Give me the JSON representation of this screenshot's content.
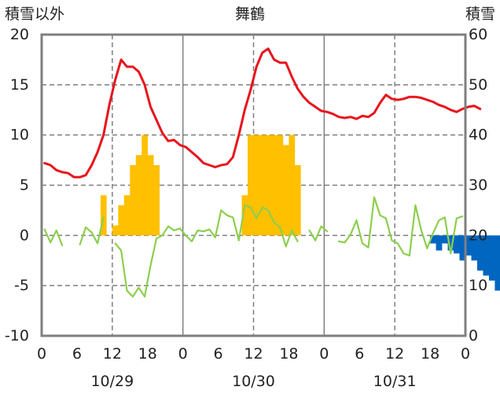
{
  "chart_data": {
    "type": "bar+line",
    "title": "舞鶴",
    "ylabel_left": "積雪以外",
    "ylabel_right": "積雪",
    "ylim_left": [
      -10,
      20
    ],
    "ylim_right": [
      0,
      60
    ],
    "yticks_left": [
      "20",
      "15",
      "10",
      "5",
      "0",
      "-5",
      "-10"
    ],
    "yticks_right": [
      "60",
      "50",
      "40",
      "30",
      "20",
      "10",
      "0"
    ],
    "xticks": [
      "0",
      "6",
      "12",
      "18",
      "0",
      "6",
      "12",
      "18",
      "0",
      "6",
      "12",
      "18",
      "0"
    ],
    "dates": [
      "10/29",
      "10/30",
      "10/31"
    ],
    "grid": true,
    "colors": {
      "temperature": "#e8141c",
      "change": "#8ccf4d",
      "positive_bar": "#ffc000",
      "negative_bar": "#0066c0",
      "axis": "#7f7f7f",
      "grid": "#7f7f7f"
    },
    "temperature": [
      7.2,
      7.0,
      6.5,
      6.3,
      6.2,
      5.8,
      5.8,
      6.0,
      7.0,
      8.3,
      10.0,
      13.0,
      15.5,
      17.5,
      16.8,
      16.8,
      16.3,
      15.0,
      12.8,
      11.5,
      10.2,
      9.4,
      9.5,
      9.0,
      8.8,
      8.3,
      7.8,
      7.2,
      7.0,
      6.8,
      7.0,
      7.1,
      7.8,
      10.0,
      12.5,
      14.5,
      16.8,
      18.2,
      18.6,
      17.5,
      17.2,
      17.2,
      15.8,
      14.6,
      13.8,
      13.2,
      12.8,
      12.4,
      12.3,
      12.1,
      11.8,
      11.7,
      11.8,
      11.6,
      11.9,
      11.8,
      12.2,
      13.2,
      14.0,
      13.6,
      13.5,
      13.6,
      13.8,
      13.8,
      13.7,
      13.5,
      13.3,
      13.0,
      12.8,
      12.5,
      12.3,
      12.6,
      12.8,
      12.9,
      12.6
    ],
    "change": [
      0.6,
      -0.7,
      0.5,
      -1.0,
      null,
      null,
      -0.9,
      0.8,
      0.3,
      -0.8,
      1.8,
      null,
      -0.8,
      -1.5,
      -5.5,
      -6.1,
      -5.2,
      -6.1,
      -3.0,
      -0.3,
      0.0,
      0.9,
      0.5,
      0.7,
      0.0,
      -0.6,
      0.5,
      0.4,
      0.6,
      -0.2,
      2.5,
      2.0,
      1.8,
      -0.5,
      3.0,
      2.8,
      1.7,
      2.8,
      2.5,
      1.3,
      0.8,
      -1.1,
      0.5,
      -0.6,
      null,
      0.5,
      -0.5,
      0.9,
      0.4,
      null,
      -0.6,
      -0.7,
      0.1,
      1.5,
      -0.8,
      -1.2,
      3.8,
      2.0,
      1.7,
      -0.5,
      -0.8,
      -1.8,
      -2.0,
      3.0,
      0.5,
      -1.3,
      0.2,
      1.5,
      1.8,
      -1.8,
      1.7,
      1.9
    ],
    "snowfall": [
      0,
      0,
      0,
      0,
      0,
      0,
      0,
      0,
      0,
      0,
      4,
      0,
      1,
      3,
      4,
      7,
      8,
      10,
      8,
      7,
      0,
      0,
      0,
      0,
      0,
      0,
      0,
      0,
      0,
      0,
      0,
      0,
      0,
      0,
      4,
      10,
      10,
      10,
      10,
      10,
      10,
      9,
      10,
      7,
      0,
      0,
      0,
      0,
      0,
      0,
      0,
      0,
      0,
      0,
      0,
      0,
      0,
      0,
      0,
      0,
      0,
      0,
      0,
      0,
      0,
      0,
      -0.8,
      -1.5,
      -0.8,
      -1.5,
      -1.8,
      -2.5,
      -2.0,
      -2.5,
      -3.5,
      -4.0,
      -4.5,
      -5.5,
      -1.0,
      0,
      0,
      0
    ]
  }
}
